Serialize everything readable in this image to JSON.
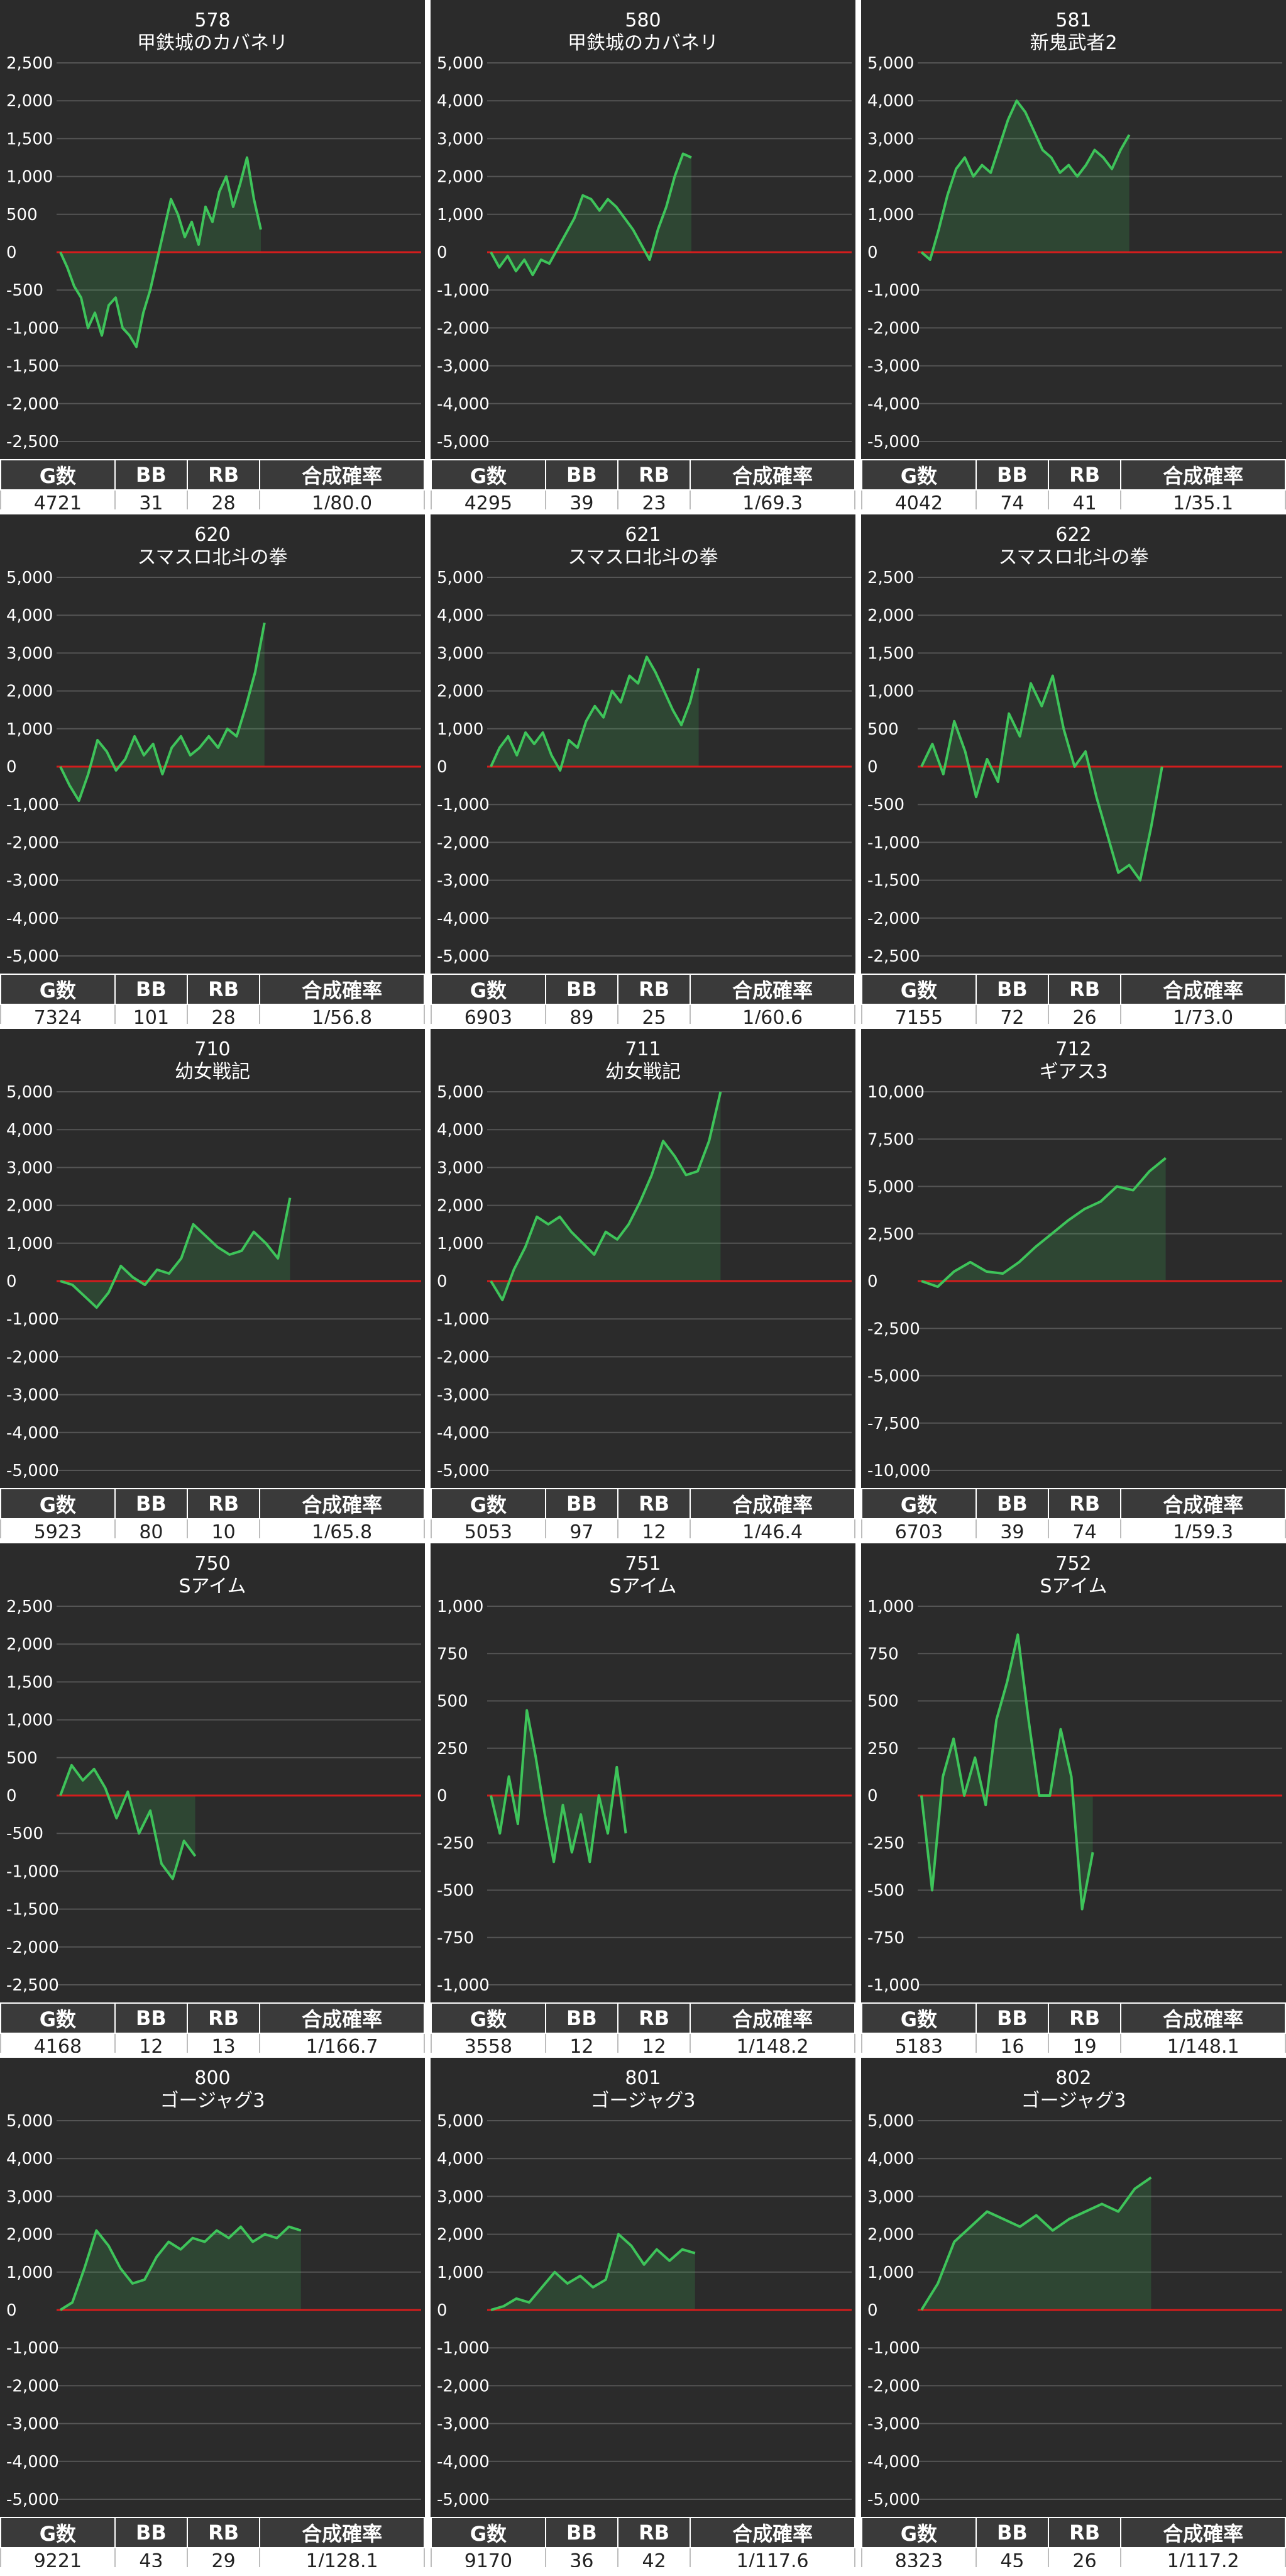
{
  "stats_headers": [
    "G数",
    "BB",
    "RB",
    "合成確率"
  ],
  "colors": {
    "line": "#3ec45a",
    "fill": "#3ec45a",
    "zero": "#d21d1d",
    "grid": "#555555",
    "bg": "#2b2b2b"
  },
  "chart_data": [
    {
      "type": "area",
      "title": "578",
      "subtitle": "甲鉄城のカバネリ",
      "ylim": [
        -2500,
        2500
      ],
      "yticks": [
        2500,
        2000,
        1500,
        1000,
        500,
        0,
        -500,
        -1000,
        -1500,
        -2000,
        -2500
      ],
      "ytick_labels": [
        "2,500",
        "2,000",
        "1,500",
        "1,000",
        "500",
        "0",
        "-500",
        "-1,000",
        "-1,500",
        "-2,000",
        "-2,500"
      ],
      "xlim": [
        0,
        100
      ],
      "values": [
        0,
        -200,
        -450,
        -600,
        -1000,
        -800,
        -1100,
        -700,
        -600,
        -1000,
        -1100,
        -1250,
        -800,
        -500,
        -100,
        300,
        700,
        500,
        200,
        400,
        100,
        600,
        400,
        800,
        1000,
        600,
        900,
        1250,
        700,
        300
      ],
      "stats": {
        "games": "4721",
        "bb": "31",
        "rb": "28",
        "rate": "1/80.0"
      }
    },
    {
      "type": "area",
      "title": "580",
      "subtitle": "甲鉄城のカバネリ",
      "ylim": [
        -5000,
        5000
      ],
      "yticks": [
        5000,
        4000,
        3000,
        2000,
        1000,
        0,
        -1000,
        -2000,
        -3000,
        -4000,
        -5000
      ],
      "ytick_labels": [
        "5,000",
        "4,000",
        "3,000",
        "2,000",
        "1,000",
        "0",
        "-1,000",
        "-2,000",
        "-3,000",
        "-4,000",
        "-5,000"
      ],
      "xlim": [
        0,
        100
      ],
      "values": [
        0,
        -400,
        -100,
        -500,
        -200,
        -600,
        -200,
        -300,
        100,
        500,
        900,
        1500,
        1400,
        1100,
        1400,
        1200,
        900,
        600,
        200,
        -200,
        600,
        1200,
        2000,
        2600,
        2500
      ],
      "stats": {
        "games": "4295",
        "bb": "39",
        "rb": "23",
        "rate": "1/69.3"
      }
    },
    {
      "type": "area",
      "title": "581",
      "subtitle": "新鬼武者2",
      "ylim": [
        -5000,
        5000
      ],
      "yticks": [
        5000,
        4000,
        3000,
        2000,
        1000,
        0,
        -1000,
        -2000,
        -3000,
        -4000,
        -5000
      ],
      "ytick_labels": [
        "5,000",
        "4,000",
        "3,000",
        "2,000",
        "1,000",
        "0",
        "-1,000",
        "-2,000",
        "-3,000",
        "-4,000",
        "-5,000"
      ],
      "xlim": [
        0,
        100
      ],
      "values": [
        0,
        -200,
        600,
        1500,
        2200,
        2500,
        2000,
        2300,
        2100,
        2800,
        3500,
        4000,
        3700,
        3200,
        2700,
        2500,
        2100,
        2300,
        2000,
        2300,
        2700,
        2500,
        2200,
        2700,
        3100
      ],
      "stats": {
        "games": "4042",
        "bb": "74",
        "rb": "41",
        "rate": "1/35.1"
      }
    },
    {
      "type": "area",
      "title": "620",
      "subtitle": "スマスロ北斗の拳",
      "ylim": [
        -5000,
        5000
      ],
      "yticks": [
        5000,
        4000,
        3000,
        2000,
        1000,
        0,
        -1000,
        -2000,
        -3000,
        -4000,
        -5000
      ],
      "ytick_labels": [
        "5,000",
        "4,000",
        "3,000",
        "2,000",
        "1,000",
        "0",
        "-1,000",
        "-2,000",
        "-3,000",
        "-4,000",
        "-5,000"
      ],
      "xlim": [
        0,
        100
      ],
      "values": [
        0,
        -500,
        -900,
        -200,
        700,
        400,
        -100,
        200,
        800,
        300,
        600,
        -200,
        500,
        800,
        300,
        500,
        800,
        500,
        1000,
        800,
        1600,
        2500,
        3800
      ],
      "stats": {
        "games": "7324",
        "bb": "101",
        "rb": "28",
        "rate": "1/56.8"
      }
    },
    {
      "type": "area",
      "title": "621",
      "subtitle": "スマスロ北斗の拳",
      "ylim": [
        -5000,
        5000
      ],
      "yticks": [
        5000,
        4000,
        3000,
        2000,
        1000,
        0,
        -1000,
        -2000,
        -3000,
        -4000,
        -5000
      ],
      "ytick_labels": [
        "5,000",
        "4,000",
        "3,000",
        "2,000",
        "1,000",
        "0",
        "-1,000",
        "-2,000",
        "-3,000",
        "-4,000",
        "-5,000"
      ],
      "xlim": [
        0,
        100
      ],
      "values": [
        0,
        500,
        800,
        300,
        900,
        600,
        900,
        300,
        -100,
        700,
        500,
        1200,
        1600,
        1300,
        2000,
        1700,
        2400,
        2200,
        2900,
        2500,
        2000,
        1500,
        1100,
        1700,
        2600
      ],
      "stats": {
        "games": "6903",
        "bb": "89",
        "rb": "25",
        "rate": "1/60.6"
      }
    },
    {
      "type": "area",
      "title": "622",
      "subtitle": "スマスロ北斗の拳",
      "ylim": [
        -2500,
        2500
      ],
      "yticks": [
        2500,
        2000,
        1500,
        1000,
        500,
        0,
        -500,
        -1000,
        -1500,
        -2000,
        -2500
      ],
      "ytick_labels": [
        "2,500",
        "2,000",
        "1,500",
        "1,000",
        "500",
        "0",
        "-500",
        "-1,000",
        "-1,500",
        "-2,000",
        "-2,500"
      ],
      "xlim": [
        0,
        100
      ],
      "values": [
        0,
        300,
        -100,
        600,
        200,
        -400,
        100,
        -200,
        700,
        400,
        1100,
        800,
        1200,
        500,
        0,
        200,
        -400,
        -900,
        -1400,
        -1300,
        -1500,
        -800,
        0
      ],
      "stats": {
        "games": "7155",
        "bb": "72",
        "rb": "26",
        "rate": "1/73.0"
      }
    },
    {
      "type": "area",
      "title": "710",
      "subtitle": "幼女戦記",
      "ylim": [
        -5000,
        5000
      ],
      "yticks": [
        5000,
        4000,
        3000,
        2000,
        1000,
        0,
        -1000,
        -2000,
        -3000,
        -4000,
        -5000
      ],
      "ytick_labels": [
        "5,000",
        "4,000",
        "3,000",
        "2,000",
        "1,000",
        "0",
        "-1,000",
        "-2,000",
        "-3,000",
        "-4,000",
        "-5,000"
      ],
      "xlim": [
        0,
        100
      ],
      "values": [
        0,
        -100,
        -400,
        -700,
        -300,
        400,
        100,
        -100,
        300,
        200,
        600,
        1500,
        1200,
        900,
        700,
        800,
        1300,
        1000,
        600,
        2200
      ],
      "stats": {
        "games": "5923",
        "bb": "80",
        "rb": "10",
        "rate": "1/65.8"
      }
    },
    {
      "type": "area",
      "title": "711",
      "subtitle": "幼女戦記",
      "ylim": [
        -5000,
        5000
      ],
      "yticks": [
        5000,
        4000,
        3000,
        2000,
        1000,
        0,
        -1000,
        -2000,
        -3000,
        -4000,
        -5000
      ],
      "ytick_labels": [
        "5,000",
        "4,000",
        "3,000",
        "2,000",
        "1,000",
        "0",
        "-1,000",
        "-2,000",
        "-3,000",
        "-4,000",
        "-5,000"
      ],
      "xlim": [
        0,
        100
      ],
      "values": [
        0,
        -500,
        300,
        900,
        1700,
        1500,
        1700,
        1300,
        1000,
        700,
        1300,
        1100,
        1500,
        2100,
        2800,
        3700,
        3300,
        2800,
        2900,
        3700,
        5000
      ],
      "stats": {
        "games": "5053",
        "bb": "97",
        "rb": "12",
        "rate": "1/46.4"
      }
    },
    {
      "type": "area",
      "title": "712",
      "subtitle": "ギアス3",
      "ylim": [
        -10000,
        10000
      ],
      "yticks": [
        10000,
        7500,
        5000,
        2500,
        0,
        -2500,
        -5000,
        -7500,
        -10000
      ],
      "ytick_labels": [
        "10,000",
        "7,500",
        "5,000",
        "2,500",
        "0",
        "-2,500",
        "-5,000",
        "-7,500",
        "-10,000"
      ],
      "xlim": [
        0,
        100
      ],
      "values": [
        0,
        -300,
        500,
        1000,
        500,
        400,
        1000,
        1800,
        2500,
        3200,
        3800,
        4200,
        5000,
        4800,
        5800,
        6500
      ],
      "stats": {
        "games": "6703",
        "bb": "39",
        "rb": "74",
        "rate": "1/59.3"
      }
    },
    {
      "type": "area",
      "title": "750",
      "subtitle": "Sアイム",
      "ylim": [
        -2500,
        2500
      ],
      "yticks": [
        2500,
        2000,
        1500,
        1000,
        500,
        0,
        -500,
        -1000,
        -1500,
        -2000,
        -2500
      ],
      "ytick_labels": [
        "2,500",
        "2,000",
        "1,500",
        "1,000",
        "500",
        "0",
        "-500",
        "-1,000",
        "-1,500",
        "-2,000",
        "-2,500"
      ],
      "xlim": [
        0,
        100
      ],
      "values": [
        0,
        400,
        200,
        350,
        100,
        -300,
        50,
        -500,
        -200,
        -900,
        -1100,
        -600,
        -800
      ],
      "stats": {
        "games": "4168",
        "bb": "12",
        "rb": "13",
        "rate": "1/166.7"
      }
    },
    {
      "type": "area",
      "title": "751",
      "subtitle": "Sアイム",
      "ylim": [
        -1000,
        1000
      ],
      "yticks": [
        1000,
        750,
        500,
        250,
        0,
        -250,
        -500,
        -750,
        -1000
      ],
      "ytick_labels": [
        "1,000",
        "750",
        "500",
        "250",
        "0",
        "-250",
        "-500",
        "-750",
        "-1,000"
      ],
      "xlim": [
        0,
        100
      ],
      "values": [
        0,
        -200,
        100,
        -150,
        450,
        200,
        -100,
        -350,
        -50,
        -300,
        -100,
        -350,
        0,
        -200,
        150,
        -200
      ],
      "stats": {
        "games": "3558",
        "bb": "12",
        "rb": "12",
        "rate": "1/148.2"
      }
    },
    {
      "type": "area",
      "title": "752",
      "subtitle": "Sアイム",
      "ylim": [
        -1000,
        1000
      ],
      "yticks": [
        1000,
        750,
        500,
        250,
        0,
        -250,
        -500,
        -750,
        -1000
      ],
      "ytick_labels": [
        "1,000",
        "750",
        "500",
        "250",
        "0",
        "-250",
        "-500",
        "-750",
        "-1,000"
      ],
      "xlim": [
        0,
        100
      ],
      "values": [
        0,
        -500,
        100,
        300,
        0,
        200,
        -50,
        400,
        600,
        850,
        400,
        0,
        0,
        350,
        100,
        -600,
        -300
      ],
      "stats": {
        "games": "5183",
        "bb": "16",
        "rb": "19",
        "rate": "1/148.1"
      }
    },
    {
      "type": "area",
      "title": "800",
      "subtitle": "ゴージャグ3",
      "ylim": [
        -5000,
        5000
      ],
      "yticks": [
        5000,
        4000,
        3000,
        2000,
        1000,
        0,
        -1000,
        -2000,
        -3000,
        -4000,
        -5000
      ],
      "ytick_labels": [
        "5,000",
        "4,000",
        "3,000",
        "2,000",
        "1,000",
        "0",
        "-1,000",
        "-2,000",
        "-3,000",
        "-4,000",
        "-5,000"
      ],
      "xlim": [
        0,
        100
      ],
      "values": [
        0,
        200,
        1100,
        2100,
        1700,
        1100,
        700,
        800,
        1400,
        1800,
        1600,
        1900,
        1800,
        2100,
        1900,
        2200,
        1800,
        2000,
        1900,
        2200,
        2100
      ],
      "stats": {
        "games": "9221",
        "bb": "43",
        "rb": "29",
        "rate": "1/128.1"
      }
    },
    {
      "type": "area",
      "title": "801",
      "subtitle": "ゴージャグ3",
      "ylim": [
        -5000,
        5000
      ],
      "yticks": [
        5000,
        4000,
        3000,
        2000,
        1000,
        0,
        -1000,
        -2000,
        -3000,
        -4000,
        -5000
      ],
      "ytick_labels": [
        "5,000",
        "4,000",
        "3,000",
        "2,000",
        "1,000",
        "0",
        "-1,000",
        "-2,000",
        "-3,000",
        "-4,000",
        "-5,000"
      ],
      "xlim": [
        0,
        100
      ],
      "values": [
        0,
        100,
        300,
        200,
        600,
        1000,
        700,
        900,
        600,
        800,
        2000,
        1700,
        1200,
        1600,
        1300,
        1600,
        1500
      ],
      "stats": {
        "games": "9170",
        "bb": "36",
        "rb": "42",
        "rate": "1/117.6"
      }
    },
    {
      "type": "area",
      "title": "802",
      "subtitle": "ゴージャグ3",
      "ylim": [
        -5000,
        5000
      ],
      "yticks": [
        5000,
        4000,
        3000,
        2000,
        1000,
        0,
        -1000,
        -2000,
        -3000,
        -4000,
        -5000
      ],
      "ytick_labels": [
        "5,000",
        "4,000",
        "3,000",
        "2,000",
        "1,000",
        "0",
        "-1,000",
        "-2,000",
        "-3,000",
        "-4,000",
        "-5,000"
      ],
      "xlim": [
        0,
        100
      ],
      "values": [
        0,
        700,
        1800,
        2200,
        2600,
        2400,
        2200,
        2500,
        2100,
        2400,
        2600,
        2800,
        2600,
        3200,
        3500
      ],
      "stats": {
        "games": "8323",
        "bb": "45",
        "rb": "26",
        "rate": "1/117.2"
      }
    }
  ]
}
